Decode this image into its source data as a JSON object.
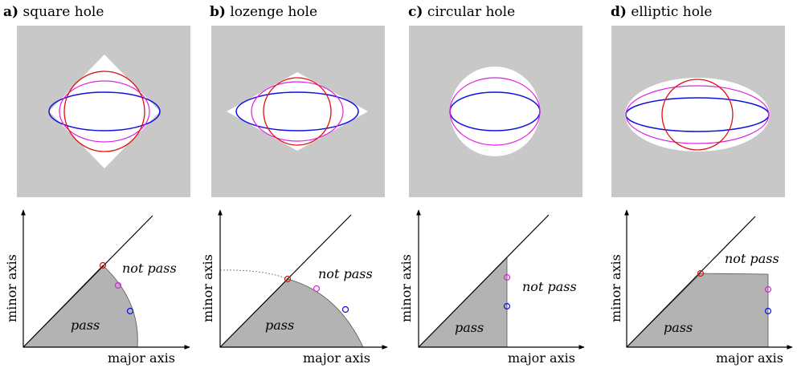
{
  "panels": [
    {
      "id": "a",
      "letter": "a)",
      "title": "square hole",
      "pass": "pass",
      "not_pass": "not pass",
      "xlabel": "major axis",
      "ylabel": "minor axis"
    },
    {
      "id": "b",
      "letter": "b)",
      "title": "lozenge hole",
      "pass": "pass",
      "not_pass": "not pass",
      "xlabel": "major axis",
      "ylabel": "minor axis"
    },
    {
      "id": "c",
      "letter": "c)",
      "title": "circular hole",
      "pass": "pass",
      "not_pass": "not pass",
      "xlabel": "major axis",
      "ylabel": "minor axis"
    },
    {
      "id": "d",
      "letter": "d)",
      "title": "elliptic hole",
      "pass": "pass",
      "not_pass": "not pass",
      "xlabel": "major axis",
      "ylabel": "minor axis"
    }
  ],
  "colors": {
    "background": "#c8c8c8",
    "hole": "#ffffff",
    "region": "#b3b3b3",
    "circle": "#e01010",
    "medium_ellipse": "#e020e0",
    "flat_ellipse": "#1010e0"
  }
}
